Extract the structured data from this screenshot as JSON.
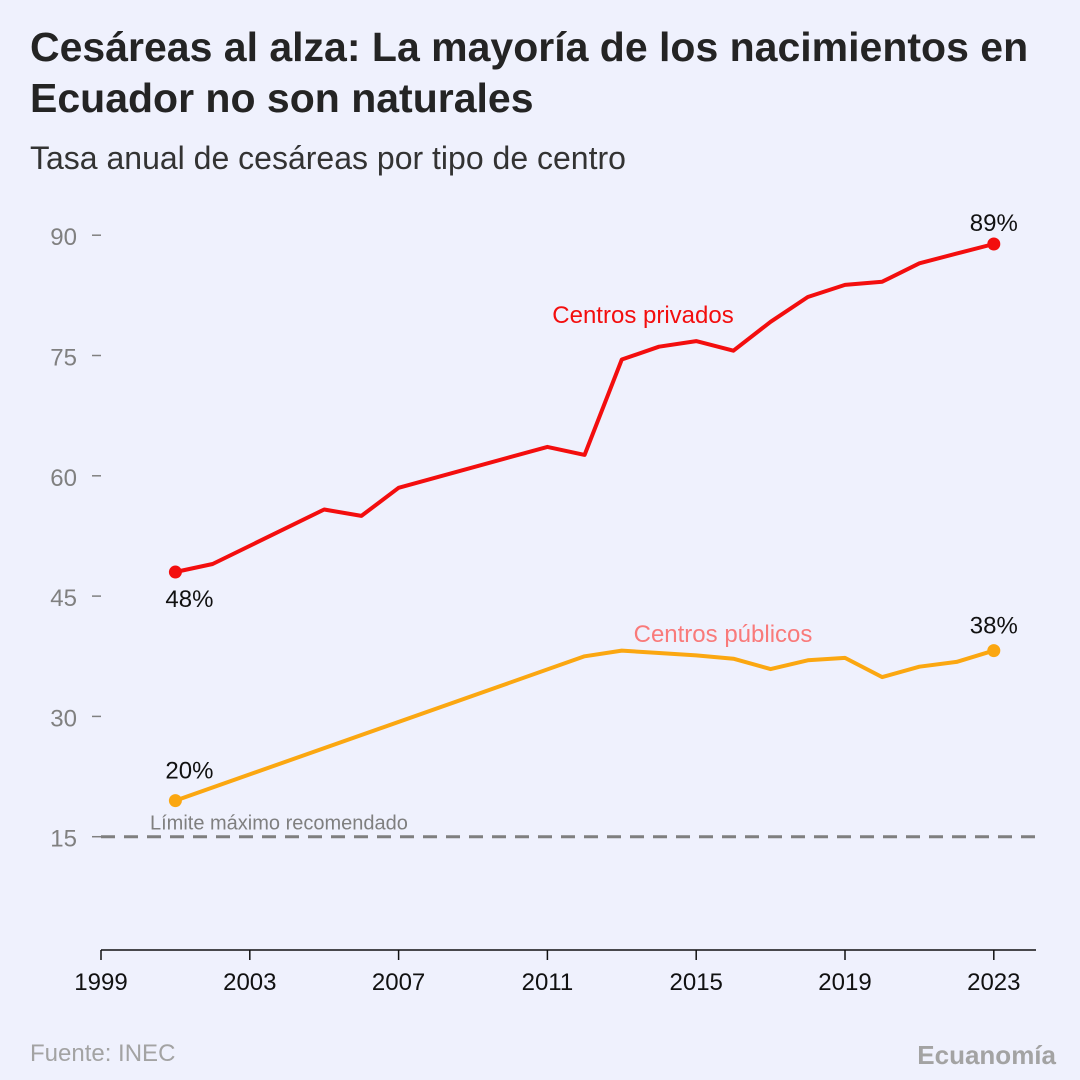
{
  "header": {
    "title": "Cesáreas al alza: La mayoría de los nacimientos en Ecuador no son naturales",
    "subtitle": "Tasa anual de cesáreas por tipo de centro"
  },
  "footer": {
    "source": "Fuente: INEC",
    "brand": "Ecuanomía"
  },
  "colors": {
    "background": "#eff1fd",
    "privados": "#f30e0e",
    "privados_label": "#f30e0e",
    "publicos": "#fba711",
    "publicos_label": "#f97a7a",
    "reference": "#7f7f7f",
    "axis_text": "#808080"
  },
  "chart_data": {
    "type": "line",
    "title": "Cesáreas al alza: La mayoría de los nacimientos en Ecuador no son naturales",
    "subtitle": "Tasa anual de cesáreas por tipo de centro",
    "xlabel": "",
    "ylabel": "",
    "xlim": [
      1999,
      2024.1
    ],
    "ylim": [
      0,
      95
    ],
    "x_ticks": [
      1999,
      2003,
      2007,
      2011,
      2015,
      2019,
      2023
    ],
    "y_ticks": [
      15,
      30,
      45,
      60,
      75,
      90
    ],
    "grid": false,
    "series": [
      {
        "name": "Centros privados",
        "x": [
          2001,
          2002,
          2005,
          2006,
          2007,
          2011,
          2012,
          2013,
          2014,
          2015,
          2016,
          2017,
          2018,
          2019,
          2020,
          2021,
          2022,
          2023
        ],
        "values": [
          48,
          49,
          55.8,
          55,
          58.5,
          63.6,
          62.6,
          74.5,
          76.1,
          76.8,
          75.6,
          79.2,
          82.3,
          83.8,
          84.2,
          86.5,
          87.7,
          88.9
        ],
        "start_label": "48%",
        "end_label": "89%"
      },
      {
        "name": "Centros públicos",
        "x": [
          2001,
          2012,
          2013,
          2014,
          2015,
          2016,
          2017,
          2018,
          2019,
          2020,
          2021,
          2022,
          2023
        ],
        "values": [
          19.5,
          37.5,
          38.2,
          37.9,
          37.6,
          37.2,
          35.9,
          37,
          37.3,
          34.9,
          36.2,
          36.8,
          38.2
        ],
        "start_label": "20%",
        "end_label": "38%"
      }
    ],
    "reference_line": {
      "value": 15,
      "label": "Límite máximo recomendado"
    }
  }
}
